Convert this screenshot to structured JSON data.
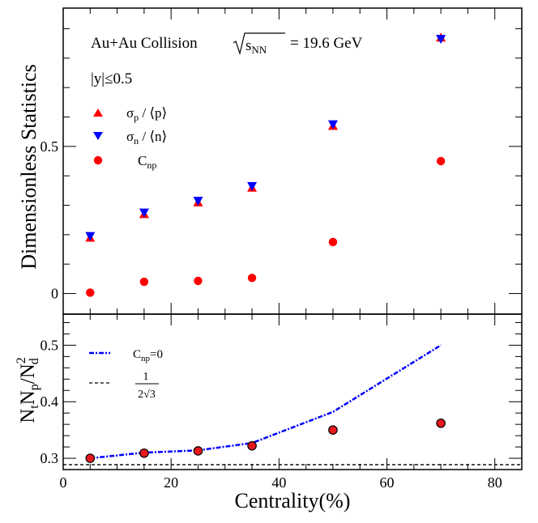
{
  "chart_data": [
    {
      "type": "scatter",
      "panel": "top",
      "title": "",
      "xlabel": "",
      "ylabel": "Dimensionless Statistics",
      "xlim": [
        0,
        85
      ],
      "ylim": [
        -0.07,
        0.97
      ],
      "y_ticks": [
        0,
        0.5
      ],
      "y_tick_labels": [
        "0",
        "0.5"
      ],
      "annotation": {
        "system": "Au+Au Collision",
        "energy_symbol_base": "s",
        "energy_symbol_sub": "NN",
        "energy_value": "= 19.6 GeV",
        "rapidity": "|y|≤0.5"
      },
      "series": [
        {
          "name": "σp / ⟨p⟩",
          "label_main": "σ",
          "label_sub": "p",
          "label_tail": " / ⟨p⟩",
          "marker": "triangle-up",
          "color": "#ff0000",
          "x": [
            5,
            15,
            25,
            35,
            50,
            70
          ],
          "values": [
            0.19,
            0.27,
            0.31,
            0.36,
            0.57,
            0.87
          ]
        },
        {
          "name": "σn / ⟨n⟩",
          "label_main": "σ",
          "label_sub": "n",
          "label_tail": " / ⟨n⟩",
          "marker": "triangle-down",
          "color": "#0000ff",
          "x": [
            5,
            15,
            25,
            35,
            50,
            70
          ],
          "values": [
            0.195,
            0.275,
            0.315,
            0.365,
            0.575,
            0.865
          ]
        },
        {
          "name": "Cnp",
          "label_main": "C",
          "label_sub": "np",
          "label_tail": "",
          "marker": "circle",
          "color": "#ff0000",
          "x": [
            5,
            15,
            25,
            35,
            50,
            70
          ],
          "values": [
            0.003,
            0.04,
            0.043,
            0.053,
            0.175,
            0.45
          ]
        }
      ]
    },
    {
      "type": "line",
      "panel": "bottom",
      "title": "",
      "xlabel": "Centrality(%)",
      "ylabel": "NtNp/Nd2",
      "ylabel_parts": {
        "a": "N",
        "a_sub": "t",
        "b": "N",
        "b_sub": "p",
        "slash": "/N",
        "c_sub": "d",
        "c_sup": "2"
      },
      "xlim": [
        0,
        85
      ],
      "ylim": [
        0.28,
        0.555
      ],
      "x_ticks": [
        0,
        20,
        40,
        60,
        80
      ],
      "x_tick_labels": [
        "0",
        "20",
        "40",
        "60",
        "80"
      ],
      "y_ticks": [
        0.3,
        0.4,
        0.5
      ],
      "y_tick_labels": [
        "0.3",
        "0.4",
        "0.5"
      ],
      "series": [
        {
          "name": "Cnp=0",
          "label_main": "C",
          "label_sub": "np",
          "label_tail": "=0",
          "style": "dash-dot",
          "color": "#0000ff",
          "x": [
            5,
            15,
            25,
            35,
            50,
            70
          ],
          "values": [
            0.3,
            0.31,
            0.314,
            0.327,
            0.382,
            0.5
          ]
        },
        {
          "name": "1/(2√3)",
          "label_num": "1",
          "label_den": "2√3",
          "style": "dashed",
          "color": "#000000",
          "hline": 0.2887
        },
        {
          "name": "data",
          "marker": "circle",
          "color": "#e8191d",
          "edge": "#000000",
          "x": [
            5,
            15,
            25,
            35,
            50,
            70
          ],
          "values": [
            0.3,
            0.309,
            0.313,
            0.322,
            0.35,
            0.362
          ]
        }
      ]
    }
  ]
}
